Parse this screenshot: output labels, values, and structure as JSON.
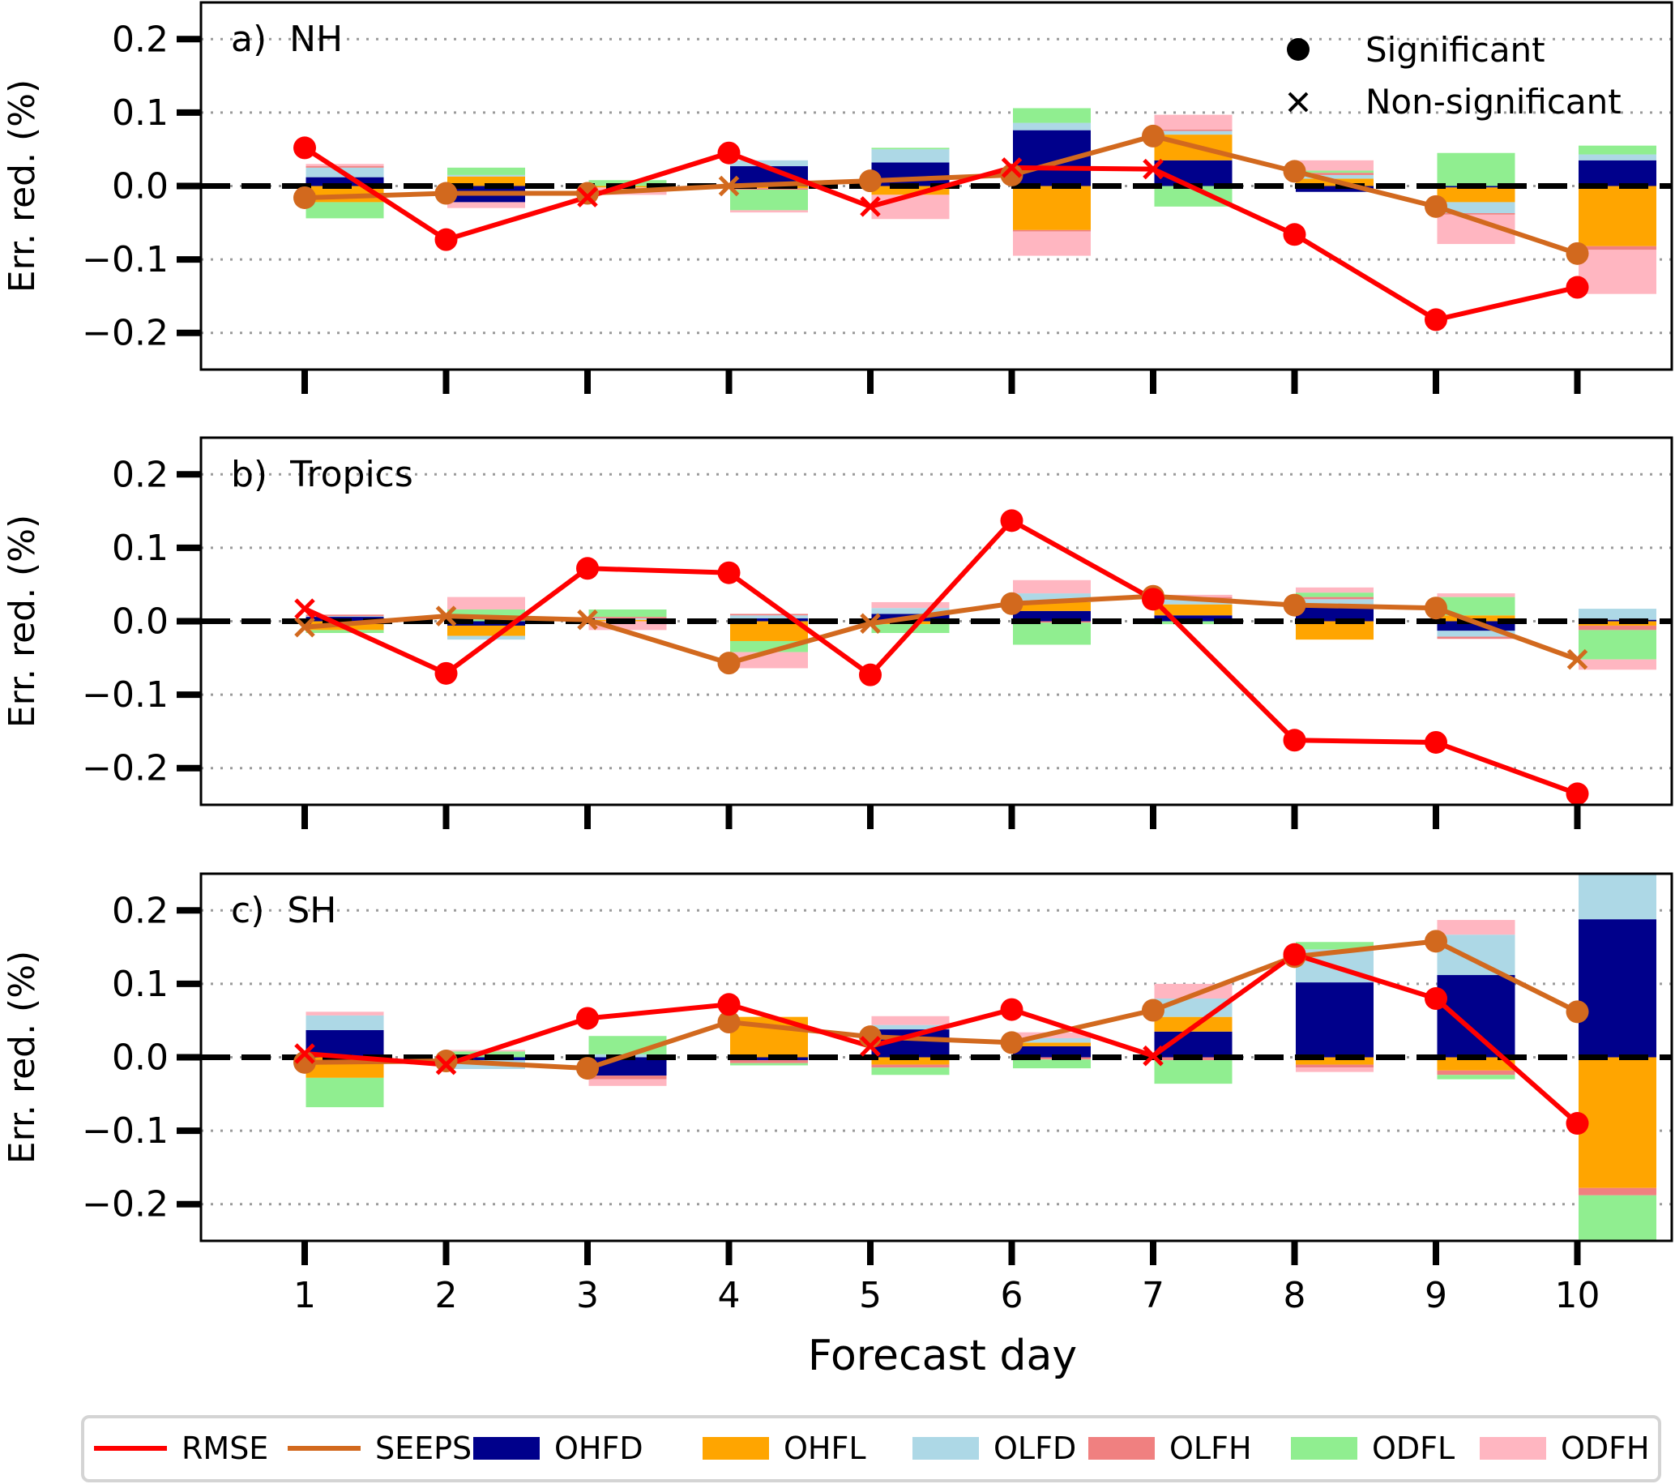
{
  "chart_data": {
    "type": "bar",
    "subtype": "stacked bar with line overlay, 3 panels",
    "xlabel": "Forecast day",
    "ylabel": "Err. red. (%)",
    "x": [
      1,
      2,
      3,
      4,
      5,
      6,
      7,
      8,
      9,
      10
    ],
    "x_tick_labels": [
      "1",
      "2",
      "3",
      "4",
      "5",
      "6",
      "7",
      "8",
      "9",
      "10"
    ],
    "ylim": [
      -0.25,
      0.25
    ],
    "y_ticks": [
      0.2,
      0.1,
      0.0,
      -0.1,
      -0.2
    ],
    "y_tick_labels": [
      "0.2",
      "0.1",
      "0.0",
      "−0.1",
      "−0.2"
    ],
    "grid": "horizontal dotted",
    "zero_line": "black dashed",
    "colors": {
      "RMSE": "#ff0000",
      "SEEPS": "#d2691e",
      "OHFD": "#00008b",
      "OHFL": "#ffa500",
      "OLFD": "#add8e6",
      "OLFH": "#f08080",
      "ODFL": "#90ee90",
      "ODFH": "#ffb6c1"
    },
    "legend": {
      "placement": "bottom",
      "entries": [
        {
          "name": "RMSE",
          "kind": "line"
        },
        {
          "name": "SEEPS",
          "kind": "line"
        },
        {
          "name": "OHFD",
          "kind": "patch"
        },
        {
          "name": "OHFL",
          "kind": "patch"
        },
        {
          "name": "OLFD",
          "kind": "patch"
        },
        {
          "name": "OLFH",
          "kind": "patch"
        },
        {
          "name": "ODFL",
          "kind": "patch"
        },
        {
          "name": "ODFH",
          "kind": "patch"
        }
      ]
    },
    "marker_legend": {
      "placement": "top-right of panel a",
      "entries": [
        {
          "symbol": "circle",
          "label": "Significant"
        },
        {
          "symbol": "x",
          "label": "Non-significant"
        }
      ]
    },
    "panels": [
      {
        "label": "a)  NH",
        "lines": {
          "RMSE": {
            "values": [
              0.052,
              -0.073,
              -0.015,
              0.045,
              -0.028,
              0.025,
              0.023,
              -0.066,
              -0.182,
              -0.138
            ],
            "significant": [
              true,
              true,
              false,
              true,
              false,
              false,
              false,
              true,
              true,
              true
            ]
          },
          "SEEPS": {
            "values": [
              -0.016,
              -0.01,
              -0.01,
              0.0,
              0.007,
              0.015,
              0.068,
              0.02,
              -0.028,
              -0.092
            ],
            "significant": [
              true,
              true,
              true,
              false,
              true,
              true,
              true,
              true,
              true,
              true
            ]
          }
        },
        "bars": {
          "OHFD": [
            0.012,
            -0.022,
            0.0,
            0.027,
            0.032,
            0.076,
            0.035,
            -0.008,
            -0.002,
            0.035
          ],
          "OHFL": [
            -0.022,
            0.013,
            -0.002,
            -0.003,
            -0.012,
            -0.06,
            0.035,
            0.01,
            -0.02,
            -0.082
          ],
          "OLFD": [
            0.013,
            0.002,
            0.0,
            0.008,
            0.018,
            0.01,
            0.005,
            0.005,
            -0.015,
            0.008
          ],
          "OLFH": [
            0.002,
            0.0,
            0.0,
            -0.002,
            0.0,
            -0.002,
            0.002,
            0.003,
            -0.002,
            -0.005
          ],
          "ODFL": [
            -0.022,
            0.01,
            0.008,
            -0.028,
            0.002,
            0.02,
            -0.028,
            0.003,
            0.045,
            0.012
          ],
          "ODFH": [
            0.003,
            -0.008,
            -0.01,
            -0.003,
            -0.033,
            -0.033,
            0.02,
            0.014,
            -0.04,
            -0.06
          ]
        }
      },
      {
        "label": "b)  Tropics",
        "lines": {
          "RMSE": {
            "values": [
              0.017,
              -0.071,
              0.072,
              0.066,
              -0.073,
              0.137,
              0.03,
              -0.162,
              -0.165,
              -0.235
            ],
            "significant": [
              false,
              true,
              true,
              true,
              true,
              true,
              true,
              true,
              true,
              true
            ]
          },
          "SEEPS": {
            "values": [
              -0.008,
              0.007,
              0.002,
              -0.057,
              -0.003,
              0.024,
              0.034,
              0.022,
              0.018,
              -0.052
            ],
            "significant": [
              false,
              false,
              false,
              true,
              false,
              true,
              true,
              true,
              true,
              false
            ]
          }
        },
        "bars": {
          "OHFD": [
            0.006,
            -0.006,
            0.0,
            0.004,
            0.01,
            0.014,
            0.008,
            0.022,
            -0.013,
            0.002
          ],
          "OHFL": [
            -0.012,
            -0.014,
            0.002,
            -0.027,
            -0.004,
            0.012,
            0.015,
            -0.025,
            0.008,
            -0.006
          ],
          "OLFD": [
            0.001,
            -0.005,
            0.002,
            0.004,
            0.008,
            0.012,
            0.008,
            0.008,
            -0.008,
            0.015
          ],
          "OLFH": [
            0.002,
            0.0,
            0.002,
            0.002,
            0.0,
            -0.002,
            0.002,
            0.003,
            -0.003,
            -0.006
          ],
          "ODFL": [
            -0.004,
            0.016,
            0.01,
            -0.015,
            -0.012,
            -0.03,
            -0.004,
            0.006,
            0.025,
            -0.04
          ],
          "ODFH": [
            0.0,
            0.017,
            -0.012,
            -0.022,
            0.008,
            0.018,
            0.003,
            0.007,
            0.005,
            -0.014
          ]
        }
      },
      {
        "label": "c)  SH",
        "lines": {
          "RMSE": {
            "values": [
              0.005,
              -0.01,
              0.053,
              0.072,
              0.015,
              0.065,
              0.002,
              0.14,
              0.08,
              -0.09
            ],
            "significant": [
              false,
              false,
              true,
              true,
              false,
              true,
              false,
              true,
              true,
              true
            ]
          },
          "SEEPS": {
            "values": [
              -0.007,
              -0.005,
              -0.015,
              0.048,
              0.028,
              0.02,
              0.064,
              0.137,
              0.158,
              0.062
            ],
            "significant": [
              true,
              true,
              true,
              true,
              true,
              true,
              true,
              true,
              true,
              true
            ]
          }
        },
        "bars": {
          "OHFD": [
            0.037,
            -0.004,
            -0.025,
            -0.004,
            0.038,
            0.015,
            0.035,
            0.102,
            0.112,
            0.188
          ],
          "OHFL": [
            -0.028,
            0.0,
            0.0,
            0.055,
            -0.01,
            0.005,
            0.02,
            -0.01,
            -0.018,
            -0.178
          ],
          "OLFD": [
            0.02,
            -0.012,
            0.004,
            0.0,
            0.006,
            0.006,
            0.025,
            0.045,
            0.055,
            0.11
          ],
          "OLFH": [
            0.0,
            0.0,
            -0.005,
            -0.004,
            -0.004,
            -0.003,
            -0.004,
            -0.004,
            -0.006,
            -0.01
          ],
          "ODFL": [
            -0.04,
            0.008,
            0.025,
            -0.003,
            -0.01,
            -0.012,
            -0.032,
            0.01,
            -0.006,
            -0.07
          ],
          "ODFH": [
            0.005,
            0.002,
            -0.009,
            0.0,
            0.012,
            0.008,
            0.02,
            -0.006,
            0.02,
            0.0
          ]
        }
      }
    ]
  }
}
